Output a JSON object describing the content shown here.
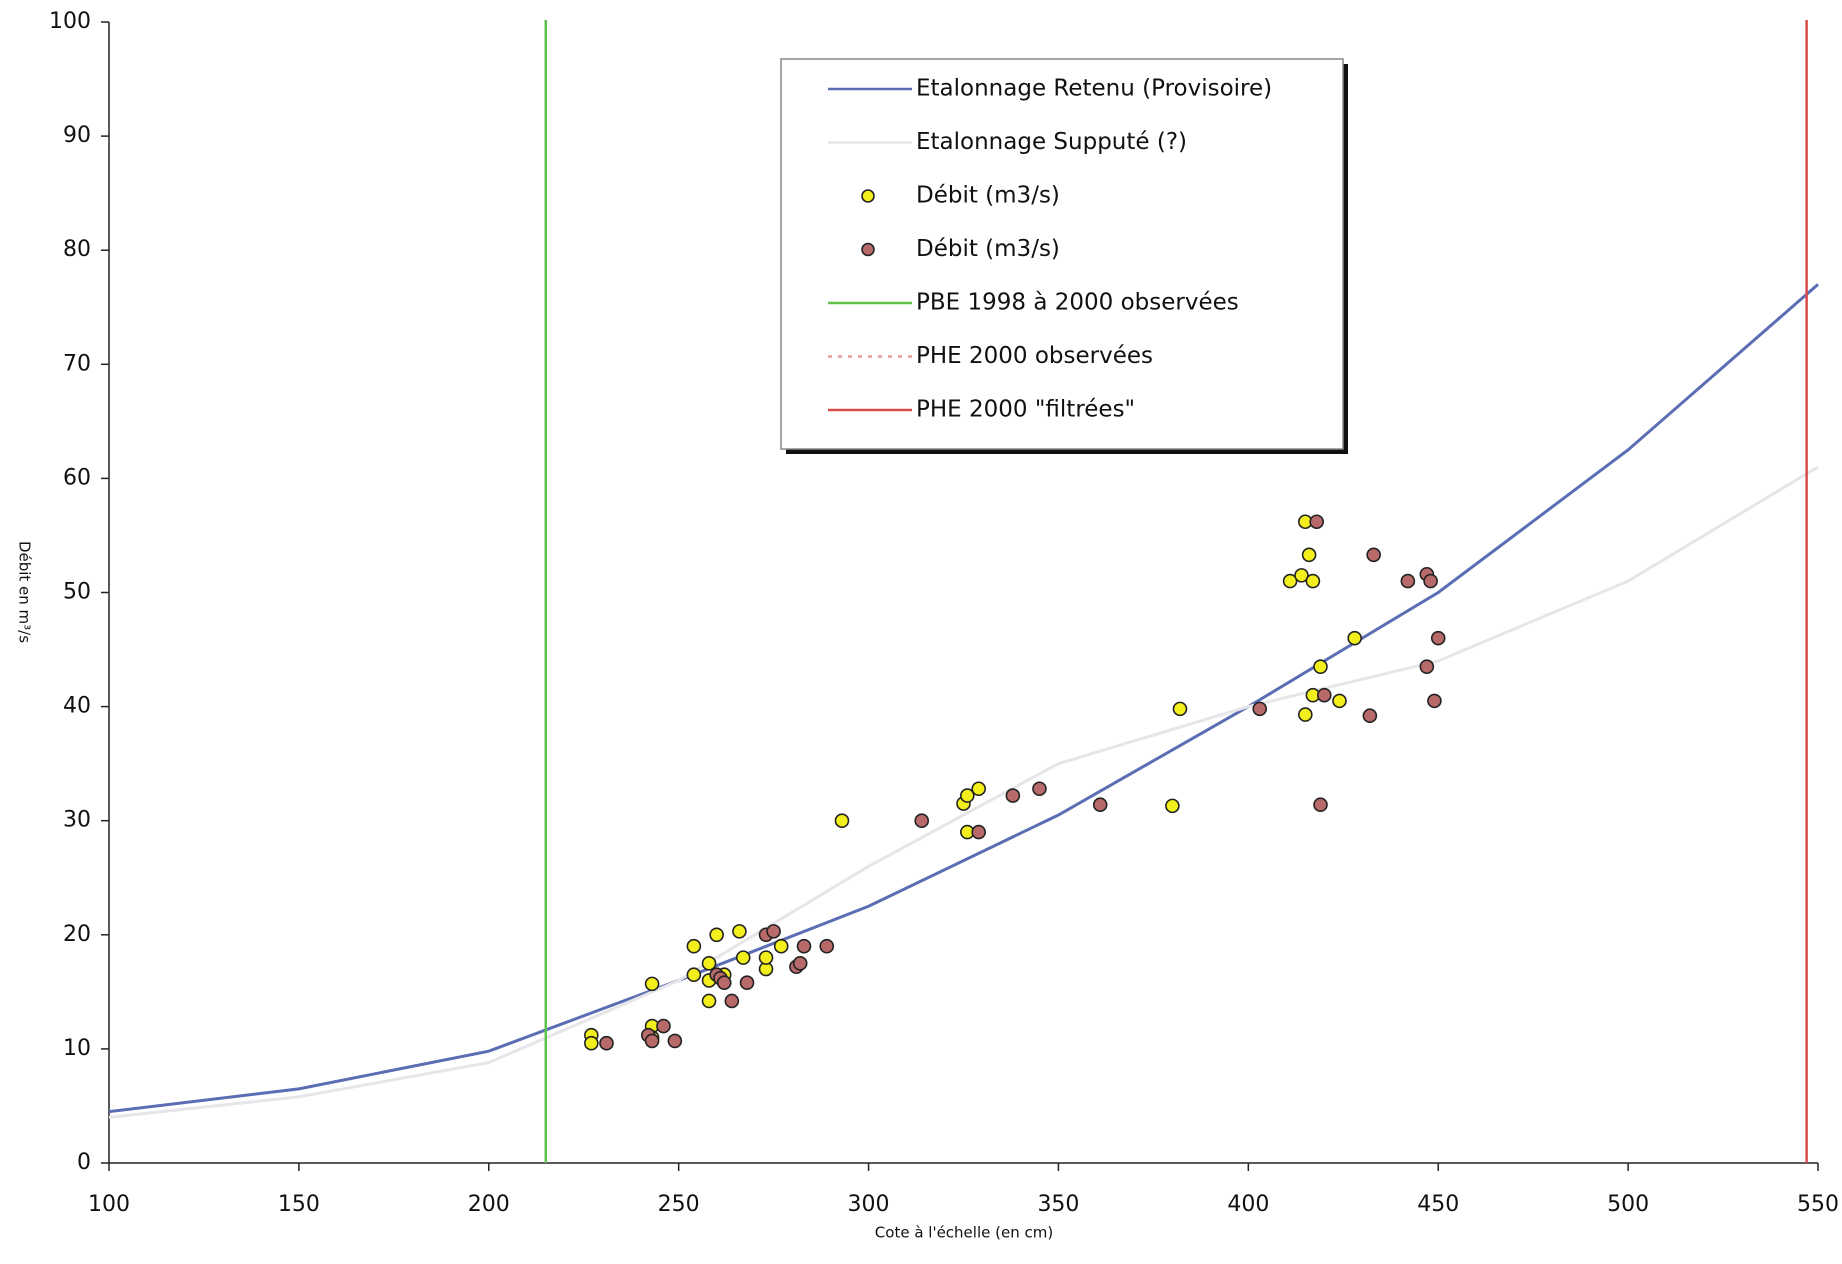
{
  "chart_data": {
    "type": "scatter",
    "x_label": "Cote à l'échelle (en cm)",
    "y_label": "Débit en m³/s",
    "xlim": [
      100,
      550
    ],
    "ylim": [
      0,
      100
    ],
    "xticks": [
      100,
      150,
      200,
      250,
      300,
      350,
      400,
      450,
      500,
      550
    ],
    "yticks": [
      0,
      10,
      20,
      30,
      40,
      50,
      60,
      70,
      80,
      90,
      100
    ],
    "series": [
      {
        "name": "Etalonnage  Retenu (Provisoire)",
        "kind": "line",
        "color": "#5b6db3",
        "x": [
          100,
          150,
          200,
          250,
          300,
          350,
          400,
          450,
          500,
          550
        ],
        "values": [
          4.5,
          6.5,
          9.8,
          16,
          22.5,
          30.5,
          40,
          50,
          62.5,
          77
        ]
      },
      {
        "name": "Etalonnage Supputé (?)",
        "kind": "line",
        "color": "#e6e6ea",
        "x": [
          100,
          150,
          200,
          250,
          300,
          350,
          400,
          450,
          500,
          550
        ],
        "values": [
          4,
          5.8,
          8.8,
          16,
          26,
          35,
          40,
          44,
          51,
          61
        ]
      },
      {
        "name": "Débit (m3/s)",
        "kind": "scatter",
        "color": "#f2ef1c",
        "x": [
          227,
          227,
          243,
          243,
          243,
          254,
          254,
          258,
          258,
          258,
          260,
          262,
          266,
          267,
          273,
          273,
          277,
          293,
          325,
          326,
          326,
          329,
          380,
          382,
          411,
          414,
          415,
          415,
          416,
          417,
          417,
          419,
          424,
          428
        ],
        "values": [
          11.2,
          10.5,
          15.7,
          12,
          11,
          19,
          16.5,
          17.5,
          16,
          14.2,
          20,
          16.5,
          20.3,
          18,
          17,
          18,
          19,
          30,
          31.5,
          32.2,
          29,
          32.8,
          31.3,
          39.8,
          51,
          51.5,
          56.2,
          39.3,
          53.3,
          51,
          41,
          43.5,
          40.5,
          46
        ]
      },
      {
        "name": "Débit (m3/s)",
        "kind": "scatter",
        "color": "#b86a6a",
        "x": [
          231,
          242,
          243,
          246,
          249,
          260,
          261,
          262,
          264,
          268,
          273,
          275,
          281,
          282,
          283,
          289,
          314,
          329,
          338,
          345,
          361,
          403,
          418,
          419,
          420,
          432,
          433,
          442,
          447,
          448,
          447,
          449,
          450
        ],
        "values": [
          10.5,
          11.2,
          10.7,
          12,
          10.7,
          16.5,
          16.2,
          15.8,
          14.2,
          15.8,
          20,
          20.3,
          17.2,
          17.5,
          19,
          19,
          30,
          29,
          32.2,
          32.8,
          31.4,
          39.8,
          56.2,
          31.4,
          41,
          39.2,
          53.3,
          51,
          51.6,
          51,
          43.5,
          40.5,
          46
        ]
      },
      {
        "name": "PBE 1998 à 2000 observées",
        "kind": "vline",
        "color": "#5cc24a",
        "x": 215
      },
      {
        "name": "PHE 2000 observées",
        "kind": "vline",
        "color": "#e99a9a",
        "dashed": true
      },
      {
        "name": "PHE 2000 \"filtrées\"",
        "kind": "vline",
        "color": "#d94a4a",
        "x": 547
      }
    ]
  }
}
